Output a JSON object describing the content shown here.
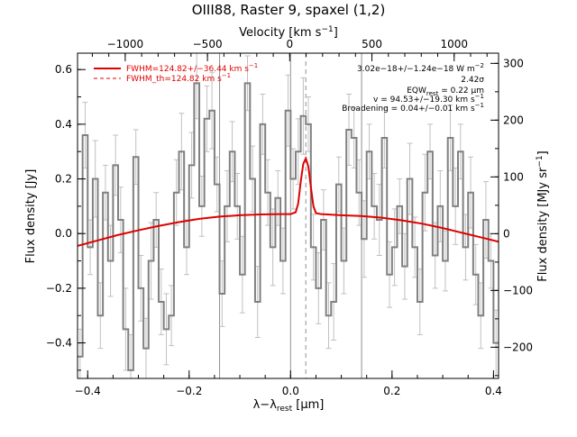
{
  "chart_data": {
    "type": "line",
    "title": "OIII88, Raster 9, spaxel (1,2)",
    "xlabel": "λ−λrest [μm]",
    "xlabel_parts": {
      "lambda": "λ−λ",
      "sub": "rest",
      "unit": " [μm]"
    },
    "ylabel": "Flux density [Jy]",
    "top_xlabel": "Velocity [km s⁻¹]",
    "top_xlabel_parts": {
      "main": "Velocity [km s",
      "sup": "−1",
      "end": "]"
    },
    "right_ylabel": "Flux density [MJy sr⁻¹]",
    "right_ylabel_parts": {
      "main": "Flux density [MJy sr",
      "sup": "−1",
      "end": "]"
    },
    "xlim": [
      -0.42,
      0.41
    ],
    "ylim": [
      -0.53,
      0.66
    ],
    "velocity_lim": [
      -1290,
      1270
    ],
    "right_ylim": [
      -255,
      318
    ],
    "xticks": [
      -0.4,
      -0.2,
      0.0,
      0.2,
      0.4
    ],
    "xticklabels": [
      "−0.4",
      "−0.2",
      "0.0",
      "0.2",
      "0.4"
    ],
    "yticks": [
      -0.4,
      -0.2,
      0.0,
      0.2,
      0.4,
      0.6
    ],
    "yticklabels": [
      "−0.4",
      "−0.2",
      "0.0",
      "0.2",
      "0.4",
      "0.6"
    ],
    "top_ticks": [
      -1000,
      -500,
      0,
      500,
      1000
    ],
    "top_ticklabels": [
      "−1000",
      "−500",
      "0",
      "500",
      "1000"
    ],
    "right_ticks": [
      -200,
      -100,
      0,
      100,
      200,
      300
    ],
    "right_ticklabels": [
      "−200",
      "−100",
      "0",
      "100",
      "200",
      "300"
    ],
    "vlines_solid": [
      -0.14,
      0.0,
      0.14
    ],
    "vline_dashed": 0.03,
    "series": [
      {
        "color": "#808080",
        "style": "steps",
        "x": [
          -0.415,
          -0.405,
          -0.395,
          -0.385,
          -0.375,
          -0.365,
          -0.355,
          -0.345,
          -0.335,
          -0.325,
          -0.315,
          -0.305,
          -0.295,
          -0.285,
          -0.275,
          -0.265,
          -0.255,
          -0.245,
          -0.235,
          -0.225,
          -0.215,
          -0.205,
          -0.195,
          -0.185,
          -0.175,
          -0.165,
          -0.155,
          -0.145,
          -0.135,
          -0.125,
          -0.115,
          -0.105,
          -0.095,
          -0.085,
          -0.075,
          -0.065,
          -0.055,
          -0.045,
          -0.035,
          -0.025,
          -0.015,
          -0.005,
          0.005,
          0.015,
          0.025,
          0.035,
          0.045,
          0.055,
          0.065,
          0.075,
          0.085,
          0.095,
          0.105,
          0.115,
          0.125,
          0.135,
          0.145,
          0.155,
          0.165,
          0.175,
          0.185,
          0.195,
          0.205,
          0.215,
          0.225,
          0.235,
          0.245,
          0.255,
          0.265,
          0.275,
          0.285,
          0.295,
          0.305,
          0.315,
          0.325,
          0.335,
          0.345,
          0.355,
          0.365,
          0.375,
          0.385,
          0.395,
          0.405
        ],
        "values": [
          -0.45,
          0.36,
          -0.05,
          0.2,
          -0.3,
          0.15,
          -0.1,
          0.25,
          0.05,
          -0.35,
          -0.5,
          0.28,
          -0.2,
          -0.42,
          -0.1,
          0.05,
          -0.25,
          -0.35,
          -0.3,
          0.15,
          0.3,
          -0.05,
          0.25,
          0.55,
          0.1,
          0.42,
          0.45,
          0.18,
          -0.22,
          0.1,
          0.3,
          0.1,
          -0.15,
          0.55,
          0.2,
          -0.25,
          0.4,
          0.15,
          -0.05,
          0.13,
          -0.1,
          0.45,
          0.2,
          0.3,
          0.43,
          0.4,
          -0.05,
          -0.2,
          0.05,
          -0.3,
          -0.25,
          0.18,
          -0.1,
          0.38,
          0.35,
          0.15,
          -0.02,
          0.3,
          0.1,
          0.05,
          0.35,
          -0.15,
          -0.05,
          0.1,
          -0.12,
          0.2,
          -0.05,
          -0.25,
          0.15,
          0.3,
          -0.08,
          0.1,
          -0.1,
          0.35,
          0.1,
          0.3,
          -0.05,
          0.15,
          -0.15,
          -0.3,
          0.05,
          -0.1,
          -0.4
        ],
        "errors": [
          0.1,
          0.12,
          0.1,
          0.14,
          0.12,
          0.1,
          0.13,
          0.11,
          0.12,
          0.15,
          0.13,
          0.1,
          0.12,
          0.11,
          0.14,
          0.1,
          0.12,
          0.13,
          0.11,
          0.12,
          0.14,
          0.1,
          0.12,
          0.13,
          0.11,
          0.12,
          0.14,
          0.1,
          0.12,
          0.13,
          0.11,
          0.12,
          0.14,
          0.1,
          0.12,
          0.13,
          0.11,
          0.12,
          0.14,
          0.1,
          0.12,
          0.13,
          0.11,
          0.12,
          0.14,
          0.1,
          0.12,
          0.13,
          0.11,
          0.12,
          0.14,
          0.1,
          0.12,
          0.13,
          0.11,
          0.12,
          0.14,
          0.1,
          0.12,
          0.13,
          0.11,
          0.12,
          0.14,
          0.1,
          0.12,
          0.13,
          0.11,
          0.12,
          0.14,
          0.1,
          0.12,
          0.13,
          0.11,
          0.12,
          0.14,
          0.1,
          0.12,
          0.13,
          0.11,
          0.12,
          0.14,
          0.1,
          0.12
        ]
      },
      {
        "color": "#e00000",
        "style": "line",
        "x": [
          -0.42,
          -0.38,
          -0.34,
          -0.3,
          -0.26,
          -0.22,
          -0.18,
          -0.14,
          -0.1,
          -0.06,
          -0.02,
          0.0,
          0.01,
          0.015,
          0.02,
          0.025,
          0.03,
          0.035,
          0.04,
          0.045,
          0.05,
          0.06,
          0.1,
          0.14,
          0.18,
          0.22,
          0.26,
          0.3,
          0.34,
          0.38,
          0.41
        ],
        "values": [
          -0.045,
          -0.025,
          -0.005,
          0.012,
          0.028,
          0.042,
          0.054,
          0.062,
          0.067,
          0.07,
          0.071,
          0.071,
          0.078,
          0.11,
          0.19,
          0.255,
          0.275,
          0.245,
          0.17,
          0.1,
          0.075,
          0.071,
          0.067,
          0.064,
          0.058,
          0.048,
          0.036,
          0.02,
          0.002,
          -0.016,
          -0.03
        ]
      }
    ],
    "legend": [
      {
        "label": "FWHM=124.82+/−36.44 km s⁻¹",
        "parts": {
          "main": "FWHM=124.82+/−36.44 km s",
          "sup": "−1"
        },
        "style": "solid"
      },
      {
        "label": "FWHM_th=124.82 km s⁻¹",
        "parts": {
          "main": "FWHM_th=124.82 km s",
          "sup": "−1"
        },
        "style": "dashed"
      }
    ],
    "legend_position": "top-left",
    "annotations": {
      "flux": {
        "main": "3.02e−18+/−1.24e−18 W m",
        "sup": "−2"
      },
      "sigma": "2.42σ",
      "eqw": {
        "pre": "EQW",
        "sub": "rest",
        "post": " = 0.22 μm"
      },
      "velocity": {
        "main": "v = 94.53+/−19.30 km s",
        "sup": "−1"
      },
      "broadening": {
        "main": "Broadening = 0.04+/−0.01 km s",
        "sup": "−1"
      }
    },
    "annotation_position": "top-right",
    "grid": false
  }
}
